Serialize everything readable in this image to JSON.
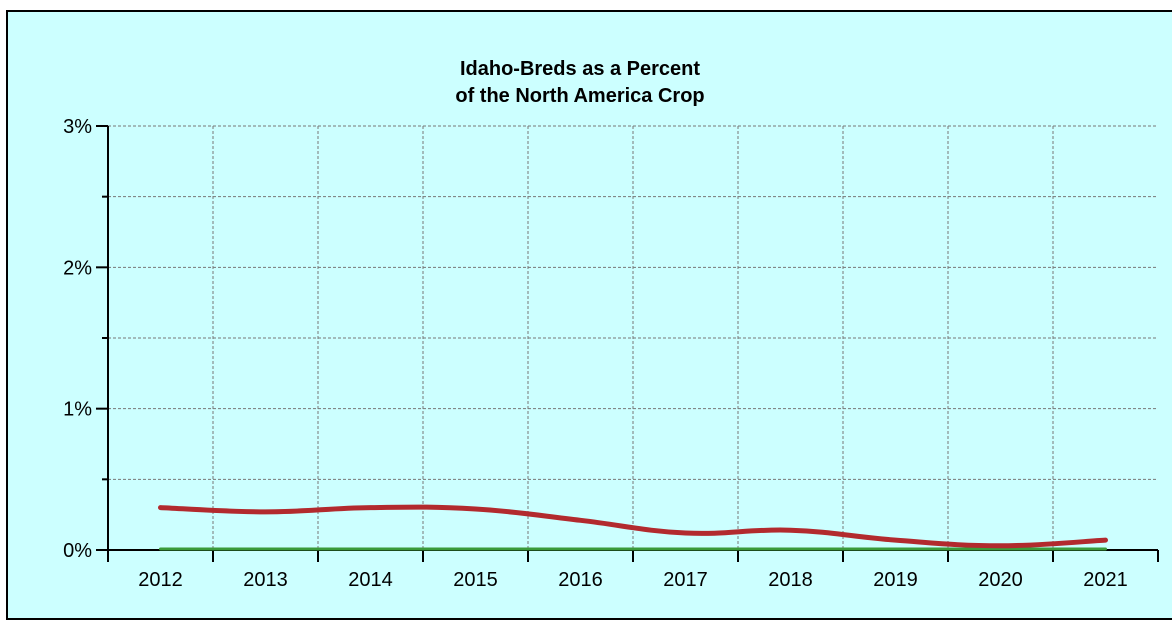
{
  "chart_data": {
    "type": "line",
    "title_lines": [
      "Idaho-Breds as a Percent",
      "of the North America Crop"
    ],
    "categories": [
      "2012",
      "2013",
      "2014",
      "2015",
      "2016",
      "2017",
      "2018",
      "2019",
      "2020",
      "2021"
    ],
    "y_ticks": [
      "0%",
      "1%",
      "2%",
      "3%"
    ],
    "ylim": [
      0,
      3
    ],
    "y_unit": "%",
    "grid": true,
    "series": [
      {
        "color": "#b22a2e",
        "values": [
          0.3,
          0.27,
          0.3,
          0.29,
          0.21,
          0.12,
          0.14,
          0.07,
          0.03,
          0.07
        ]
      },
      {
        "color": "#3a9a3a",
        "values": [
          0,
          0,
          0,
          0,
          0,
          0,
          0,
          0,
          0,
          0
        ]
      }
    ],
    "background_color": "#ccffff"
  }
}
